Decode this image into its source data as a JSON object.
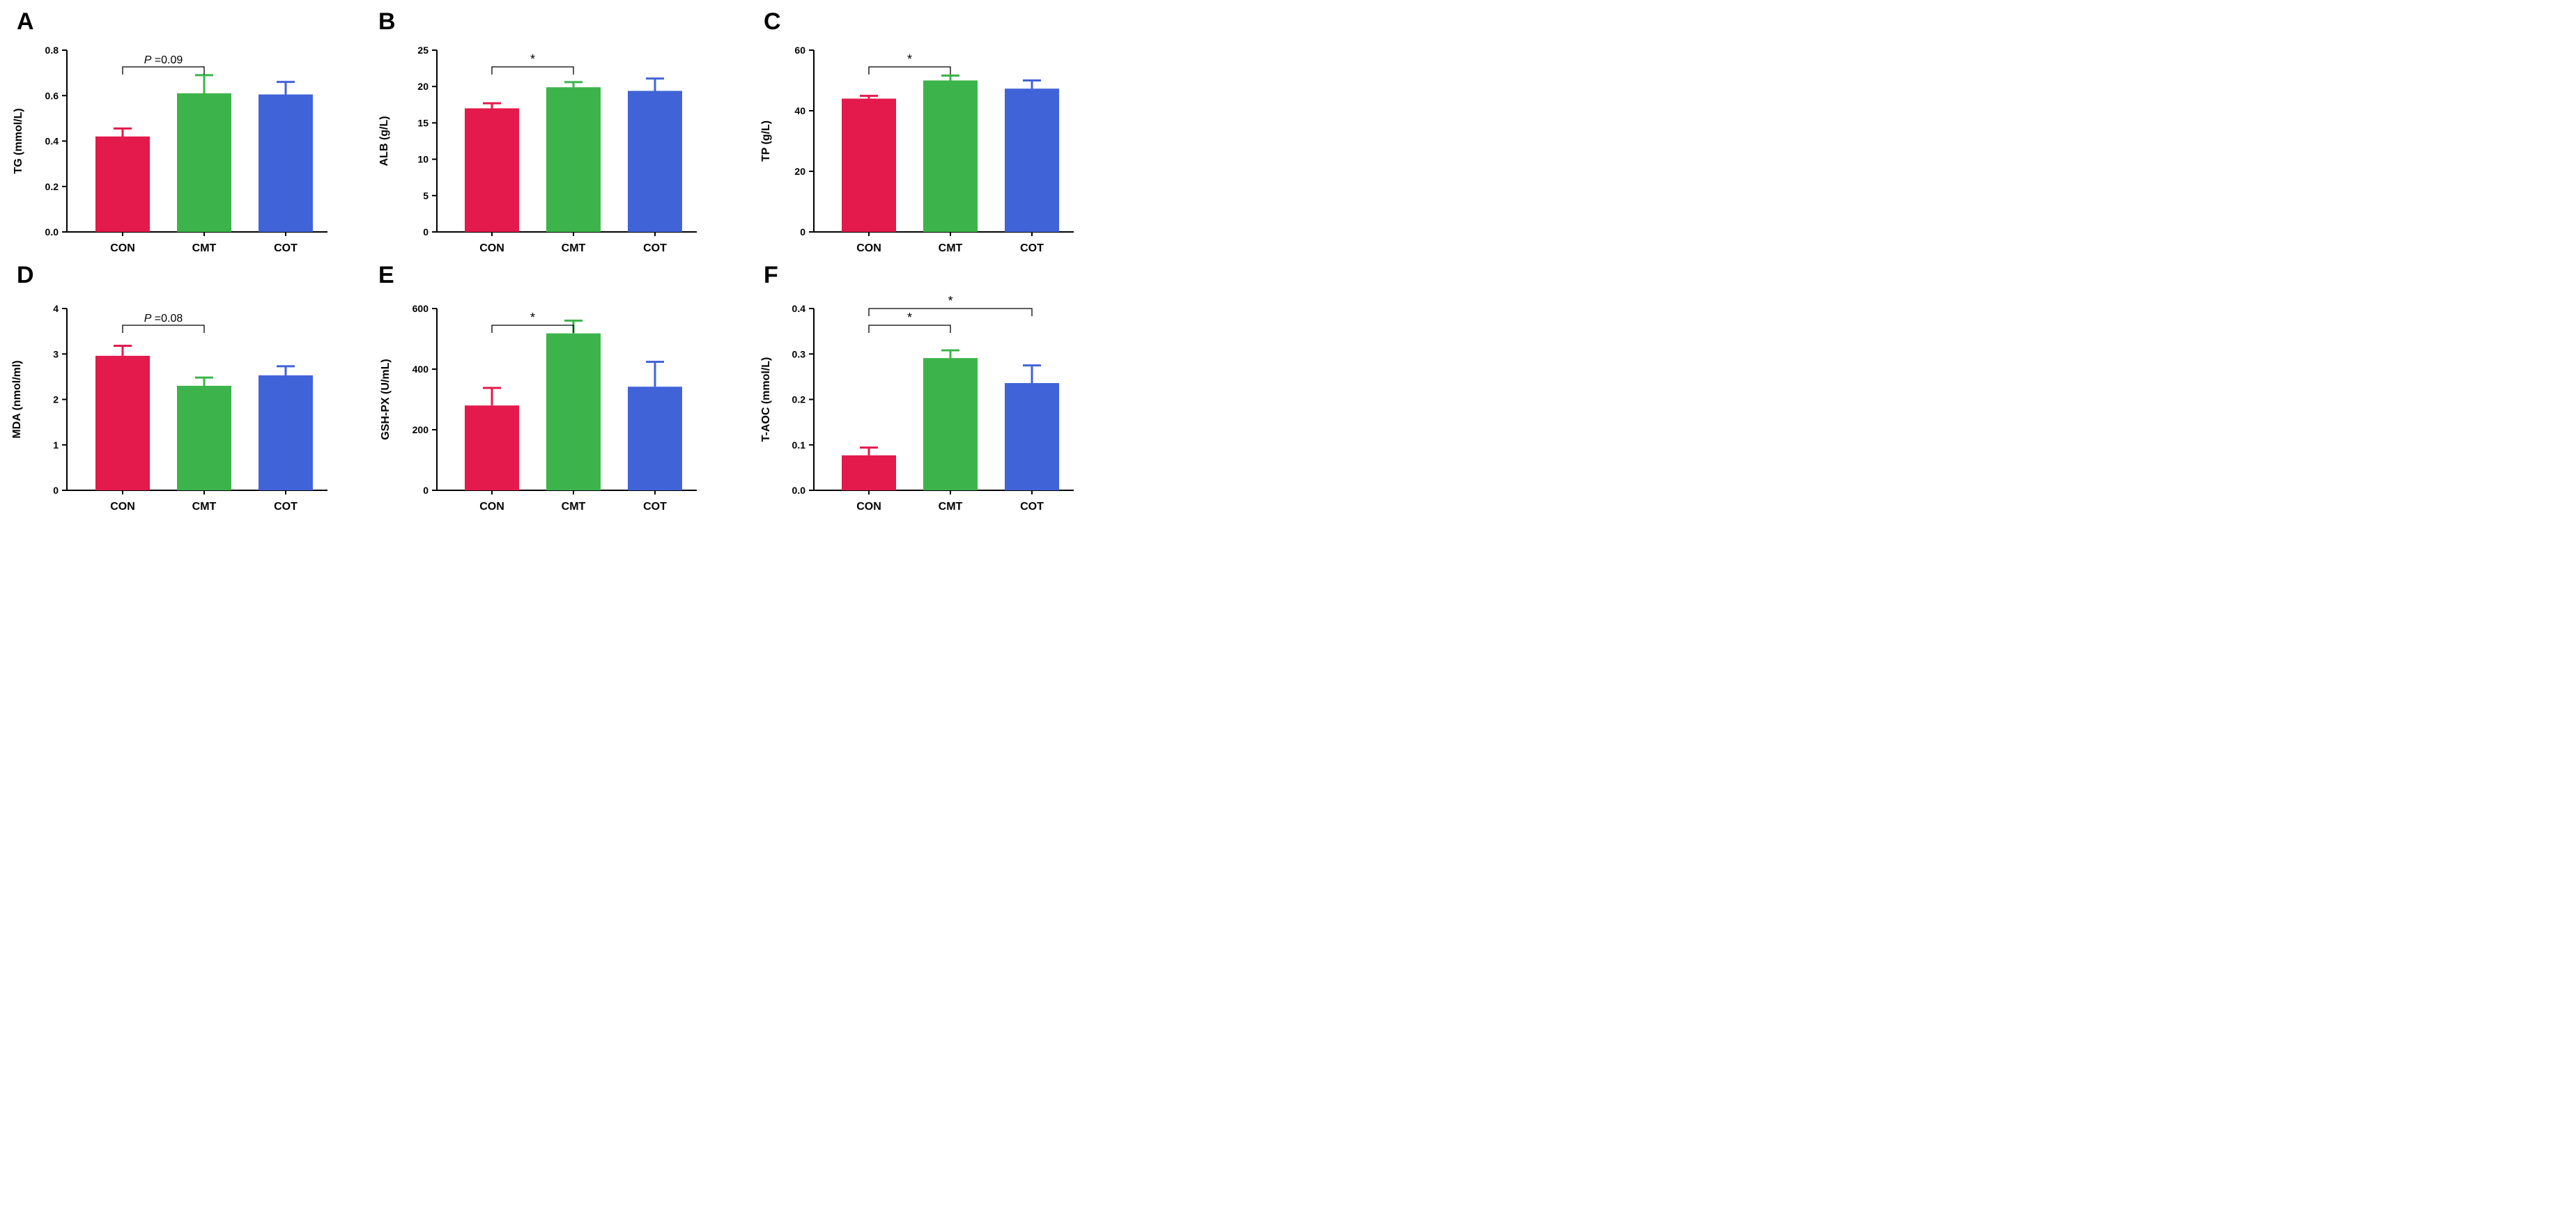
{
  "figure": {
    "colors": {
      "CON": "#e31a4b",
      "CMT": "#3cb44b",
      "COT": "#4163d8",
      "axis": "#000000",
      "bracket": "#555555"
    }
  },
  "chart_data": [
    {
      "type": "bar",
      "panel": "A",
      "ylabel": "TG (mmol/L)",
      "categories": [
        "CON",
        "CMT",
        "COT"
      ],
      "values": [
        0.42,
        0.61,
        0.605
      ],
      "errors": [
        0.035,
        0.08,
        0.055
      ],
      "ylim": [
        0,
        0.8
      ],
      "yticks": [
        0.0,
        0.2,
        0.4,
        0.6,
        0.8
      ],
      "ytick_labels": [
        "0.0",
        "0.2",
        "0.4",
        "0.6",
        "0.8"
      ],
      "annotations": [
        {
          "from": "CON",
          "to": "CMT",
          "level": 1,
          "prefix": "P",
          "label": " =0.09"
        }
      ]
    },
    {
      "type": "bar",
      "panel": "B",
      "ylabel": "ALB (g/L)",
      "categories": [
        "CON",
        "CMT",
        "COT"
      ],
      "values": [
        17.0,
        19.9,
        19.4
      ],
      "errors": [
        0.7,
        0.7,
        1.7
      ],
      "ylim": [
        0,
        25
      ],
      "yticks": [
        0,
        5,
        10,
        15,
        20,
        25
      ],
      "ytick_labels": [
        "0",
        "5",
        "10",
        "15",
        "20",
        "25"
      ],
      "annotations": [
        {
          "from": "CON",
          "to": "CMT",
          "level": 1,
          "prefix": "",
          "label": "*"
        }
      ]
    },
    {
      "type": "bar",
      "panel": "C",
      "ylabel": "TP (g/L)",
      "categories": [
        "CON",
        "CMT",
        "COT"
      ],
      "values": [
        44.0,
        50.0,
        47.3
      ],
      "errors": [
        0.9,
        1.6,
        2.7
      ],
      "ylim": [
        0,
        60
      ],
      "yticks": [
        0,
        20,
        40,
        60
      ],
      "ytick_labels": [
        "0",
        "20",
        "40",
        "60"
      ],
      "annotations": [
        {
          "from": "CON",
          "to": "CMT",
          "level": 1,
          "prefix": "",
          "label": "*"
        }
      ]
    },
    {
      "type": "bar",
      "panel": "D",
      "ylabel": "MDA (nmol/ml)",
      "categories": [
        "CON",
        "CMT",
        "COT"
      ],
      "values": [
        2.96,
        2.3,
        2.53
      ],
      "errors": [
        0.22,
        0.18,
        0.2
      ],
      "ylim": [
        0,
        4
      ],
      "yticks": [
        0,
        1,
        2,
        3,
        4
      ],
      "ytick_labels": [
        "0",
        "1",
        "2",
        "3",
        "4"
      ],
      "annotations": [
        {
          "from": "CON",
          "to": "CMT",
          "level": 1,
          "prefix": "P",
          "label": " =0.08"
        }
      ]
    },
    {
      "type": "bar",
      "panel": "E",
      "ylabel": "GSH-PX (U/mL)",
      "categories": [
        "CON",
        "CMT",
        "COT"
      ],
      "values": [
        280,
        518,
        342
      ],
      "errors": [
        58,
        42,
        82
      ],
      "ylim": [
        0,
        600
      ],
      "yticks": [
        0,
        200,
        400,
        600
      ],
      "ytick_labels": [
        "0",
        "200",
        "400",
        "600"
      ],
      "annotations": [
        {
          "from": "CON",
          "to": "CMT",
          "level": 1,
          "prefix": "",
          "label": "*"
        }
      ]
    },
    {
      "type": "bar",
      "panel": "F",
      "ylabel": "T-AOC (mmol/L)",
      "categories": [
        "CON",
        "CMT",
        "COT"
      ],
      "values": [
        0.077,
        0.291,
        0.236
      ],
      "errors": [
        0.017,
        0.017,
        0.039
      ],
      "ylim": [
        0,
        0.4
      ],
      "yticks": [
        0.0,
        0.1,
        0.2,
        0.3,
        0.4
      ],
      "ytick_labels": [
        "0.0",
        "0.1",
        "0.2",
        "0.3",
        "0.4"
      ],
      "annotations": [
        {
          "from": "CON",
          "to": "CMT",
          "level": 1,
          "prefix": "",
          "label": "*"
        },
        {
          "from": "CON",
          "to": "COT",
          "level": 2,
          "prefix": "",
          "label": "*"
        }
      ]
    }
  ]
}
